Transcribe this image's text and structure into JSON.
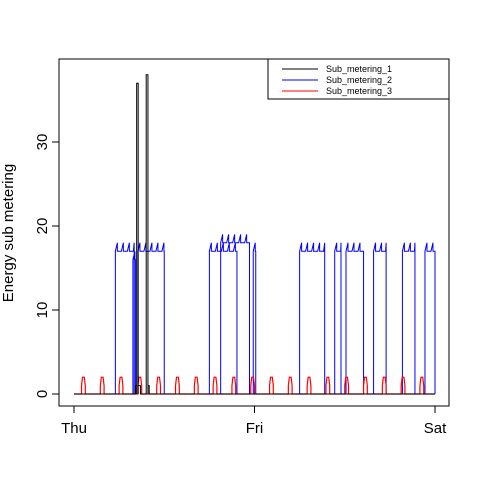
{
  "chart_data": {
    "type": "line",
    "title": "",
    "xlabel": "",
    "ylabel": "Energy sub metering",
    "x_ticks": [
      "Thu",
      "Fri",
      "Sat"
    ],
    "x_tick_values": [
      0,
      1440,
      2880
    ],
    "y_ticks": [
      0,
      10,
      20,
      30
    ],
    "xlim": [
      0,
      2880
    ],
    "ylim": [
      0,
      38
    ],
    "grid": false,
    "legend_position": "top-right",
    "series": [
      {
        "name": "Sub_metering_1",
        "color": "#000000",
        "step_segments": [
          [
            491,
            500,
            1
          ],
          [
            500,
            512,
            37
          ],
          [
            512,
            530,
            1
          ],
          [
            576,
            590,
            38
          ],
          [
            590,
            600,
            1
          ]
        ]
      },
      {
        "name": "Sub_metering_2",
        "color": "#0000ff",
        "step_segments": [
          [
            330,
            480,
            17
          ],
          [
            470,
            490,
            16
          ],
          [
            510,
            720,
            17
          ],
          [
            1080,
            1300,
            17
          ],
          [
            1170,
            1400,
            18
          ],
          [
            1430,
            1450,
            17
          ],
          [
            1800,
            2000,
            17
          ],
          [
            2080,
            2130,
            17
          ],
          [
            2170,
            2310,
            17
          ],
          [
            2390,
            2490,
            17
          ],
          [
            2620,
            2720,
            17
          ],
          [
            2800,
            2880,
            17
          ]
        ]
      },
      {
        "name": "Sub_metering_3",
        "color": "#ff0000",
        "periodic_pulses": {
          "period": 150,
          "width": 30,
          "value": 2,
          "start": 60
        }
      }
    ]
  }
}
